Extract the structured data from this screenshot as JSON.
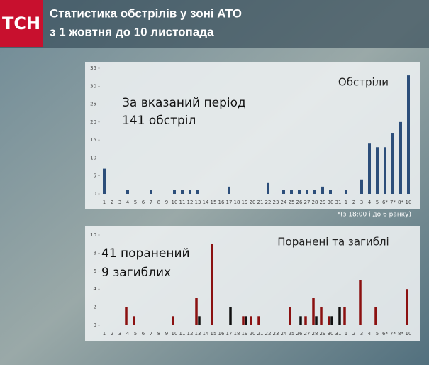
{
  "header": {
    "logo": "ТСН",
    "title_lines": [
      "Статистика обстрілів у зоні АТО",
      "з 1 жовтня до 10 листопада"
    ]
  },
  "chart_data": [
    {
      "type": "bar",
      "title": "Обстріли",
      "annotations": [
        "За вказаний період",
        "141 обстріл"
      ],
      "footnote": "*(з 18:00 і до 6 ранку)",
      "categories": [
        "1",
        "2",
        "3",
        "4",
        "5",
        "6",
        "7",
        "8",
        "9",
        "10",
        "11",
        "12",
        "13",
        "14",
        "15",
        "16",
        "17",
        "18",
        "19",
        "20",
        "21",
        "22",
        "23",
        "24",
        "25",
        "26",
        "27",
        "28",
        "29",
        "30",
        "31",
        "1",
        "2",
        "3",
        "4",
        "5",
        "6*",
        "7*",
        "8*",
        "10"
      ],
      "series": [
        {
          "color": "#2c4e7a",
          "values": [
            7,
            0,
            0,
            1,
            0,
            0,
            1,
            0,
            0,
            1,
            1,
            1,
            1,
            0,
            0,
            0,
            2,
            0,
            0,
            0,
            0,
            3,
            0,
            1,
            1,
            1,
            1,
            1,
            2,
            1,
            0,
            1,
            0,
            4,
            14,
            13,
            13,
            17,
            20,
            33
          ]
        }
      ],
      "ylim": [
        0,
        35
      ],
      "yticks": [
        0,
        5,
        10,
        15,
        20,
        25,
        30,
        35
      ]
    },
    {
      "type": "grouped-bar",
      "title": "Поранені та загиблі",
      "annotations": [
        "41 поранений",
        "9  загиблих"
      ],
      "categories": [
        "1",
        "2",
        "3",
        "4",
        "5",
        "6",
        "7",
        "8",
        "9",
        "10",
        "11",
        "12",
        "13",
        "14",
        "15",
        "16",
        "17",
        "18",
        "19",
        "20",
        "21",
        "22",
        "23",
        "24",
        "25",
        "26",
        "27",
        "28",
        "29",
        "30",
        "31",
        "1",
        "2",
        "3",
        "4",
        "5",
        "6*",
        "7*",
        "8*",
        "10"
      ],
      "series": [
        {
          "color": "#8b1111",
          "values": [
            0,
            0,
            0,
            2,
            1,
            0,
            0,
            0,
            0,
            1,
            0,
            0,
            3,
            0,
            9,
            0,
            0,
            0,
            1,
            1,
            1,
            0,
            0,
            0,
            2,
            0,
            1,
            3,
            2,
            1,
            0,
            2,
            0,
            5,
            0,
            2,
            0,
            0,
            0,
            4
          ]
        },
        {
          "color": "#111111",
          "values": [
            0,
            0,
            0,
            0,
            0,
            0,
            0,
            0,
            0,
            0,
            0,
            0,
            1,
            0,
            0,
            0,
            2,
            0,
            1,
            0,
            0,
            0,
            0,
            0,
            0,
            1,
            0,
            1,
            0,
            1,
            2,
            0,
            0,
            0,
            0,
            0,
            0,
            0,
            0,
            0
          ]
        }
      ],
      "ylim": [
        0,
        10
      ],
      "yticks": [
        0,
        2,
        4,
        6,
        8,
        10
      ]
    }
  ]
}
